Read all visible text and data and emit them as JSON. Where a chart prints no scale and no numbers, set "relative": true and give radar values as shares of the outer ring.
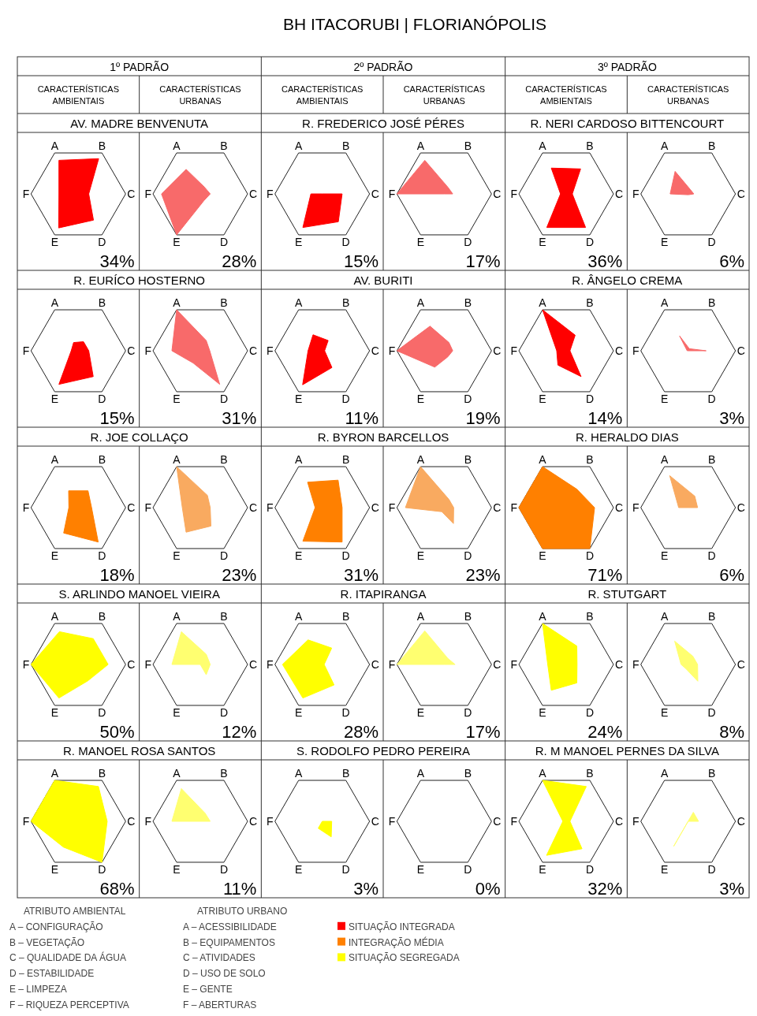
{
  "chart_data": [
    {
      "type": "other",
      "title": "BH ITACORUBI | FLORIANÓPOLIS",
      "annotations": [
        "1º PADRÃO",
        "CARACTERÍSTICAS AMBIENTAIS",
        "CARACTERÍSTICAS URBANAS",
        "2º PADRÃO",
        "CARACTERÍSTICAS AMBIENTAIS",
        "CARACTERÍSTICAS URBANAS",
        "3º PADRÃO",
        "CARACTERÍSTICAS AMBIENTAIS",
        "CARACTERÍSTICAS URBANAS"
      ]
    },
    {
      "type": "radar",
      "relative": true,
      "title": "AV. MADRE BENVENUTA",
      "categories": [
        "A",
        "B",
        "C",
        "D",
        "E",
        "F"
      ],
      "series": [
        {
          "color": "#ff0000",
          "values": [
            0.82,
            0.86,
            0.22,
            0.64,
            0.83,
            0.41
          ]
        }
      ],
      "annotations": [
        "34%"
      ]
    },
    {
      "type": "radar",
      "relative": true,
      "categories": [
        "A",
        "B",
        "C",
        "D",
        "E",
        "F"
      ],
      "series": [
        {
          "color": "#f86a6a",
          "values": [
            0.6,
            0.17,
            0.21,
            0.16,
            1.0,
            0.82
          ]
        }
      ],
      "annotations": [
        "28%"
      ]
    },
    {
      "type": "radar",
      "relative": true,
      "title": "R. FREDERICO JOSÉ PÉRES",
      "categories": [
        "A",
        "B",
        "C",
        "D",
        "E",
        "F"
      ],
      "series": [
        {
          "color": "#ff0000",
          "values": [
            0,
            0,
            0.42,
            0.68,
            0.82,
            0.24
          ]
        }
      ],
      "annotations": [
        "15%"
      ]
    },
    {
      "type": "radar",
      "relative": true,
      "categories": [
        "A",
        "B",
        "C",
        "D",
        "E",
        "F"
      ],
      "series": [
        {
          "color": "#f86a6a",
          "values": [
            0.82,
            0.16,
            0.18,
            0,
            0,
            1.0
          ]
        }
      ],
      "annotations": [
        "17%"
      ]
    },
    {
      "type": "radar",
      "relative": true,
      "title": "R. NERI CARDOSO BITTENCOURT",
      "categories": [
        "A",
        "B",
        "C",
        "D",
        "E",
        "F"
      ],
      "series": [
        {
          "color": "#ff0000",
          "values": [
            0.63,
            0.61,
            0.13,
            0.82,
            0.82,
            0.12
          ]
        }
      ],
      "annotations": [
        "36%"
      ]
    },
    {
      "type": "radar",
      "relative": true,
      "categories": [
        "A",
        "B",
        "C",
        "D",
        "E",
        "F"
      ],
      "series": [
        {
          "color": "#f86a6a",
          "values": [
            0.55,
            0.1,
            0.12,
            0.02,
            0.02,
            0.38
          ]
        }
      ],
      "annotations": [
        "6%"
      ]
    },
    {
      "type": "radar",
      "relative": true,
      "title": "R. EURÍCO HOSTERNO",
      "categories": [
        "A",
        "B",
        "C",
        "D",
        "E",
        "F"
      ],
      "series": [
        {
          "color": "#ff0000",
          "values": [
            0.2,
            0.22,
            0.22,
            0.63,
            0.82,
            0.15
          ]
        }
      ],
      "annotations": [
        "15%"
      ]
    },
    {
      "type": "radar",
      "relative": true,
      "categories": [
        "A",
        "B",
        "C",
        "D",
        "E",
        "F"
      ],
      "series": [
        {
          "color": "#f86a6a",
          "values": [
            1.0,
            0.25,
            0.2,
            0.82,
            0.3,
            0.6
          ]
        }
      ],
      "annotations": [
        "31%"
      ]
    },
    {
      "type": "radar",
      "relative": true,
      "title": "AV. BURITI",
      "categories": [
        "A",
        "B",
        "C",
        "D",
        "E",
        "F"
      ],
      "series": [
        {
          "color": "#ff0000",
          "values": [
            0.39,
            0.25,
            0.05,
            0.41,
            0.83,
            0.3
          ]
        }
      ],
      "annotations": [
        "11%"
      ]
    },
    {
      "type": "radar",
      "relative": true,
      "categories": [
        "A",
        "B",
        "C",
        "D",
        "E",
        "F"
      ],
      "series": [
        {
          "color": "#f86a6a",
          "values": [
            0.6,
            0.2,
            0.18,
            0.15,
            0.4,
            1.0
          ]
        }
      ],
      "annotations": [
        "19%"
      ]
    },
    {
      "type": "radar",
      "relative": true,
      "title": "R. ÂNGELO CREMA",
      "categories": [
        "A",
        "B",
        "C",
        "D",
        "E",
        "F"
      ],
      "series": [
        {
          "color": "#ff0000",
          "values": [
            1.0,
            0.38,
            0.08,
            0.63,
            0.35,
            0.2
          ]
        }
      ],
      "annotations": [
        "14%"
      ]
    },
    {
      "type": "radar",
      "relative": true,
      "categories": [
        "A",
        "B",
        "C",
        "D",
        "E",
        "F"
      ],
      "series": [
        {
          "color": "#f86a6a",
          "values": [
            0.36,
            0.05,
            0.38,
            0,
            0,
            0.02
          ]
        }
      ],
      "annotations": [
        "3%"
      ]
    },
    {
      "type": "radar",
      "relative": true,
      "title": "R. JOE COLLAÇO",
      "categories": [
        "A",
        "B",
        "C",
        "D",
        "E",
        "F"
      ],
      "series": [
        {
          "color": "#ff8000",
          "values": [
            0.41,
            0.41,
            0.28,
            0.84,
            0.62,
            0.2
          ]
        }
      ],
      "annotations": [
        "18%"
      ]
    },
    {
      "type": "radar",
      "relative": true,
      "categories": [
        "A",
        "B",
        "C",
        "D",
        "E",
        "F"
      ],
      "series": [
        {
          "color": "#f9aa60",
          "values": [
            1.0,
            0.3,
            0.21,
            0.45,
            0.6,
            0.38
          ]
        }
      ],
      "annotations": [
        "23%"
      ]
    },
    {
      "type": "radar",
      "relative": true,
      "title": "R. BYRON BARCELLOS",
      "categories": [
        "A",
        "B",
        "C",
        "D",
        "E",
        "F"
      ],
      "series": [
        {
          "color": "#ff8000",
          "values": [
            0.62,
            0.67,
            0.42,
            0.84,
            0.82,
            0.15
          ]
        }
      ],
      "annotations": [
        "31%"
      ]
    },
    {
      "type": "radar",
      "relative": true,
      "categories": [
        "A",
        "B",
        "C",
        "D",
        "E",
        "F"
      ],
      "series": [
        {
          "color": "#f9aa60",
          "values": [
            1.0,
            0.2,
            0.2,
            0.39,
            0.1,
            0.82
          ]
        }
      ],
      "annotations": [
        "23%"
      ]
    },
    {
      "type": "radar",
      "relative": true,
      "title": "R. HERALDO DIAS",
      "categories": [
        "A",
        "B",
        "C",
        "D",
        "E",
        "F"
      ],
      "series": [
        {
          "color": "#ff8000",
          "values": [
            1.0,
            0.45,
            0.6,
            1.0,
            1.0,
            1.0
          ]
        }
      ],
      "annotations": [
        "71%"
      ]
    },
    {
      "type": "radar",
      "relative": true,
      "categories": [
        "A",
        "B",
        "C",
        "D",
        "E",
        "F"
      ],
      "series": [
        {
          "color": "#f9aa60",
          "values": [
            0.78,
            0.28,
            0.2,
            0,
            0,
            0.2
          ]
        }
      ],
      "annotations": [
        "6%"
      ]
    },
    {
      "type": "radar",
      "relative": true,
      "title": "S. ARLINDO MANOEL VIEIRA",
      "categories": [
        "A",
        "B",
        "C",
        "D",
        "E",
        "F"
      ],
      "series": [
        {
          "color": "#ffff00",
          "values": [
            0.8,
            0.63,
            0.63,
            0.4,
            0.82,
            1.0
          ]
        }
      ],
      "annotations": [
        "50%"
      ]
    },
    {
      "type": "radar",
      "relative": true,
      "categories": [
        "A",
        "B",
        "C",
        "D",
        "E",
        "F"
      ],
      "series": [
        {
          "color": "#ffff70",
          "values": [
            0.8,
            0.25,
            0.21,
            0.25,
            0,
            0.6
          ]
        }
      ],
      "annotations": [
        "12%"
      ]
    },
    {
      "type": "radar",
      "relative": true,
      "title": "R. ITAPIRANGA",
      "categories": [
        "A",
        "B",
        "C",
        "D",
        "E",
        "F"
      ],
      "series": [
        {
          "color": "#ffff00",
          "values": [
            0.6,
            0.4,
            0.04,
            0.5,
            0.82,
            0.84
          ]
        }
      ],
      "annotations": [
        "28%"
      ]
    },
    {
      "type": "radar",
      "relative": true,
      "categories": [
        "A",
        "B",
        "C",
        "D",
        "E",
        "F"
      ],
      "series": [
        {
          "color": "#ffff70",
          "values": [
            0.82,
            0.15,
            0.23,
            0,
            0,
            1.0
          ]
        }
      ],
      "annotations": [
        "17%"
      ]
    },
    {
      "type": "radar",
      "relative": true,
      "title": "R. STUTGART",
      "categories": [
        "A",
        "B",
        "C",
        "D",
        "E",
        "F"
      ],
      "series": [
        {
          "color": "#ffff00",
          "values": [
            1.0,
            0.45,
            0.23,
            0.45,
            0.63,
            0.39
          ]
        }
      ],
      "annotations": [
        "24%"
      ]
    },
    {
      "type": "radar",
      "relative": true,
      "categories": [
        "A",
        "B",
        "C",
        "D",
        "E",
        "F"
      ],
      "series": [
        {
          "color": "#ffff70",
          "values": [
            0.57,
            0.2,
            0.2,
            0.41,
            0.1,
            0.15
          ]
        }
      ],
      "annotations": [
        "8%"
      ]
    },
    {
      "type": "radar",
      "relative": true,
      "title": "R. MANOEL ROSA SANTOS",
      "categories": [
        "A",
        "B",
        "C",
        "D",
        "E",
        "F"
      ],
      "series": [
        {
          "color": "#ffff00",
          "values": [
            1.0,
            0.85,
            0.61,
            1.0,
            0.63,
            1.0
          ]
        }
      ],
      "annotations": [
        "68%"
      ]
    },
    {
      "type": "radar",
      "relative": true,
      "categories": [
        "A",
        "B",
        "C",
        "D",
        "E",
        "F"
      ],
      "series": [
        {
          "color": "#ffff70",
          "values": [
            0.8,
            0.2,
            0.21,
            0,
            0,
            0.6
          ]
        }
      ],
      "annotations": [
        "11%"
      ]
    },
    {
      "type": "radar",
      "relative": true,
      "title": "S. RODOLFO PEDRO PEREIRA",
      "categories": [
        "A",
        "B",
        "C",
        "D",
        "E",
        "F"
      ],
      "series": [
        {
          "color": "#ffff00",
          "values": [
            0,
            0,
            0.2,
            0.38,
            0.17,
            0
          ]
        }
      ],
      "annotations": [
        "3%"
      ]
    },
    {
      "type": "radar",
      "relative": true,
      "categories": [
        "A",
        "B",
        "C",
        "D",
        "E",
        "F"
      ],
      "annotations": [
        "0%"
      ]
    },
    {
      "type": "radar",
      "relative": true,
      "title": "R. M MANOEL PERNES DA SILVA",
      "categories": [
        "A",
        "B",
        "C",
        "D",
        "E",
        "F"
      ],
      "series": [
        {
          "color": "#ffff00",
          "values": [
            1.0,
            0.85,
            0.08,
            0.67,
            0.83,
            0.07
          ]
        }
      ],
      "annotations": [
        "32%"
      ]
    },
    {
      "type": "radar",
      "relative": true,
      "categories": [
        "A",
        "B",
        "C",
        "D",
        "E",
        "F"
      ],
      "series": [
        {
          "color": "#ffff70",
          "values": [
            0,
            0.22,
            0.22,
            0,
            0.61,
            0
          ]
        }
      ],
      "annotations": [
        "3%"
      ]
    },
    {
      "type": "other",
      "annotations": [
        "ATRIBUTO AMBIENTAL",
        "A – CONFIGURAÇÃO",
        "B – VEGETAÇÃO",
        "C – QUALIDADE DA ÁGUA",
        "D – ESTABILIDADE",
        "E – LIMPEZA",
        "F – RIQUEZA PERCEPTIVA",
        "ATRIBUTO URBANO",
        "A – ACESSIBILIDADE",
        "B – EQUIPAMENTOS",
        "C – ATIVIDADES",
        "D – USO DE SOLO",
        "E – GENTE",
        "F – ABERTURAS"
      ],
      "series": [
        {
          "name": "SITUAÇÃO INTEGRADA",
          "color": "#ff0000"
        },
        {
          "name": "INTEGRAÇÃO MÉDIA",
          "color": "#ff8000"
        },
        {
          "name": "SITUAÇÃO SEGREGADA",
          "color": "#ffff00"
        }
      ]
    }
  ]
}
